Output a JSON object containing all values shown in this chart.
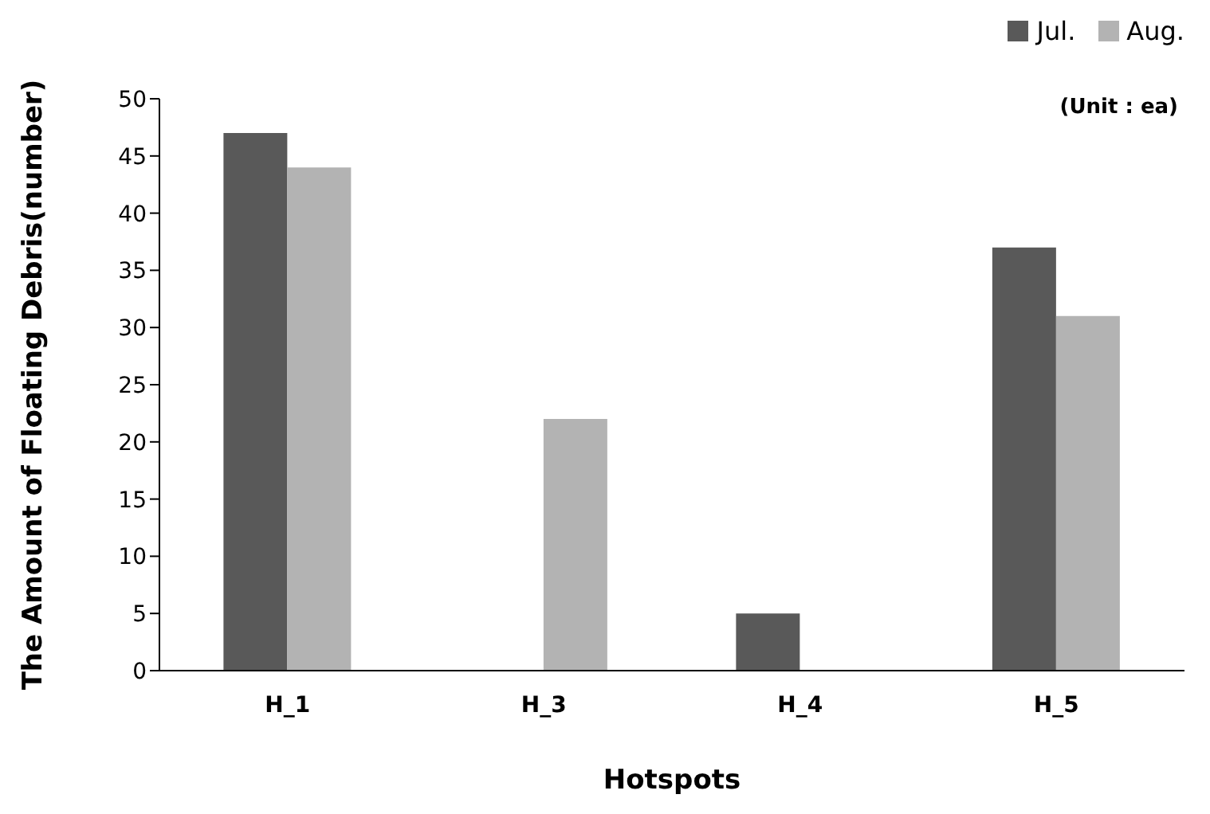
{
  "chart_data": {
    "type": "bar",
    "xlabel": "Hotspots",
    "ylabel": "The Amount of Floating Debris(number)",
    "annotations": [
      "(Unit : ea)"
    ],
    "categories": [
      "H_1",
      "H_3",
      "H_4",
      "H_5"
    ],
    "series": [
      {
        "name": "Jul.",
        "color": "#595959",
        "values": [
          47,
          0,
          5,
          37
        ]
      },
      {
        "name": "Aug.",
        "color": "#b3b3b3",
        "values": [
          44,
          22,
          0,
          31
        ]
      }
    ],
    "ylim": [
      0,
      50
    ],
    "yticks": [
      0,
      5,
      10,
      15,
      20,
      25,
      30,
      35,
      40,
      45,
      50
    ],
    "grid": false,
    "legend": "top right"
  }
}
